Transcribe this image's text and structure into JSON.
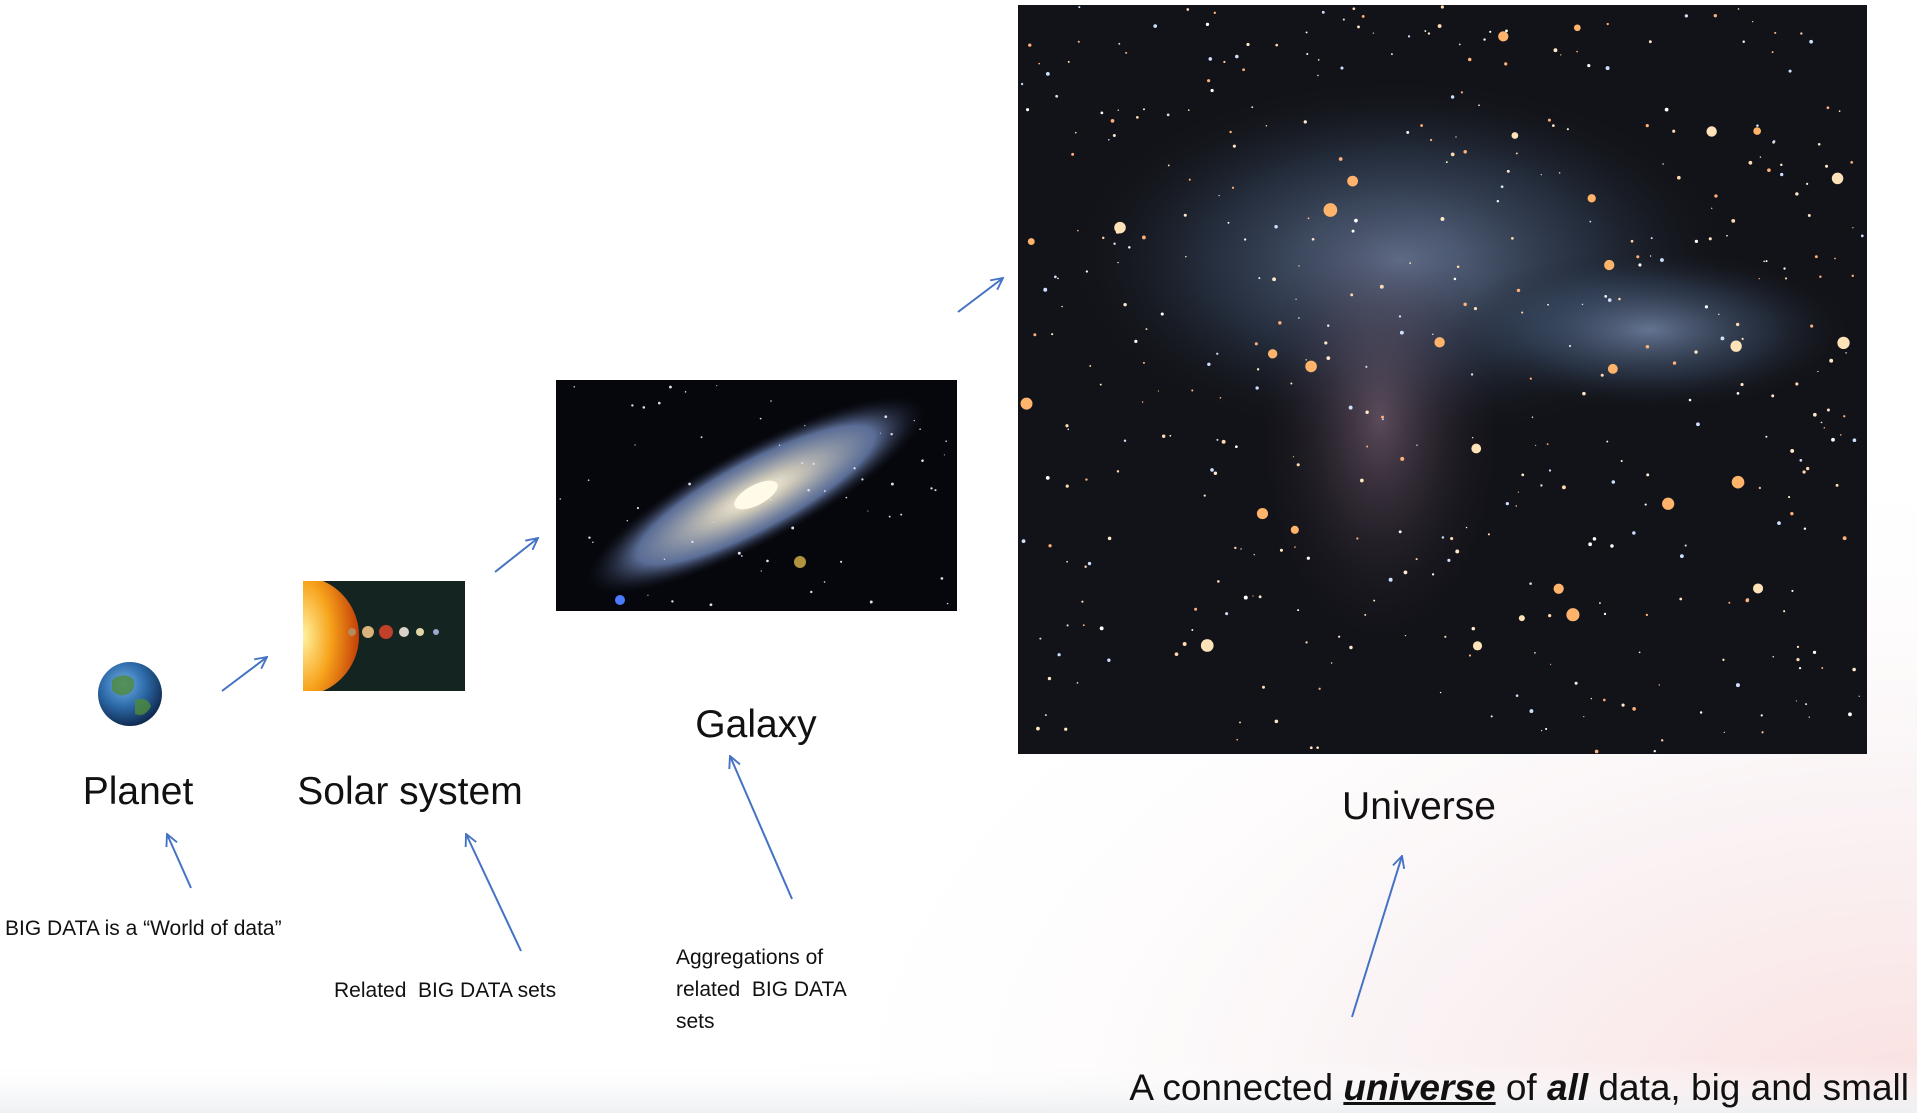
{
  "stages": [
    {
      "label": "Planet",
      "description": [
        "BIG DATA is a “World of data”"
      ]
    },
    {
      "label": "Solar system",
      "description": [
        "Related  BIG DATA sets"
      ]
    },
    {
      "label": "Galaxy",
      "description": [
        "Aggregations of",
        "related  BIG DATA",
        "sets"
      ]
    },
    {
      "label": "Universe"
    }
  ],
  "caption": {
    "parts": [
      "A connected ",
      "universe",
      " of ",
      "all",
      " data, big and small"
    ]
  }
}
